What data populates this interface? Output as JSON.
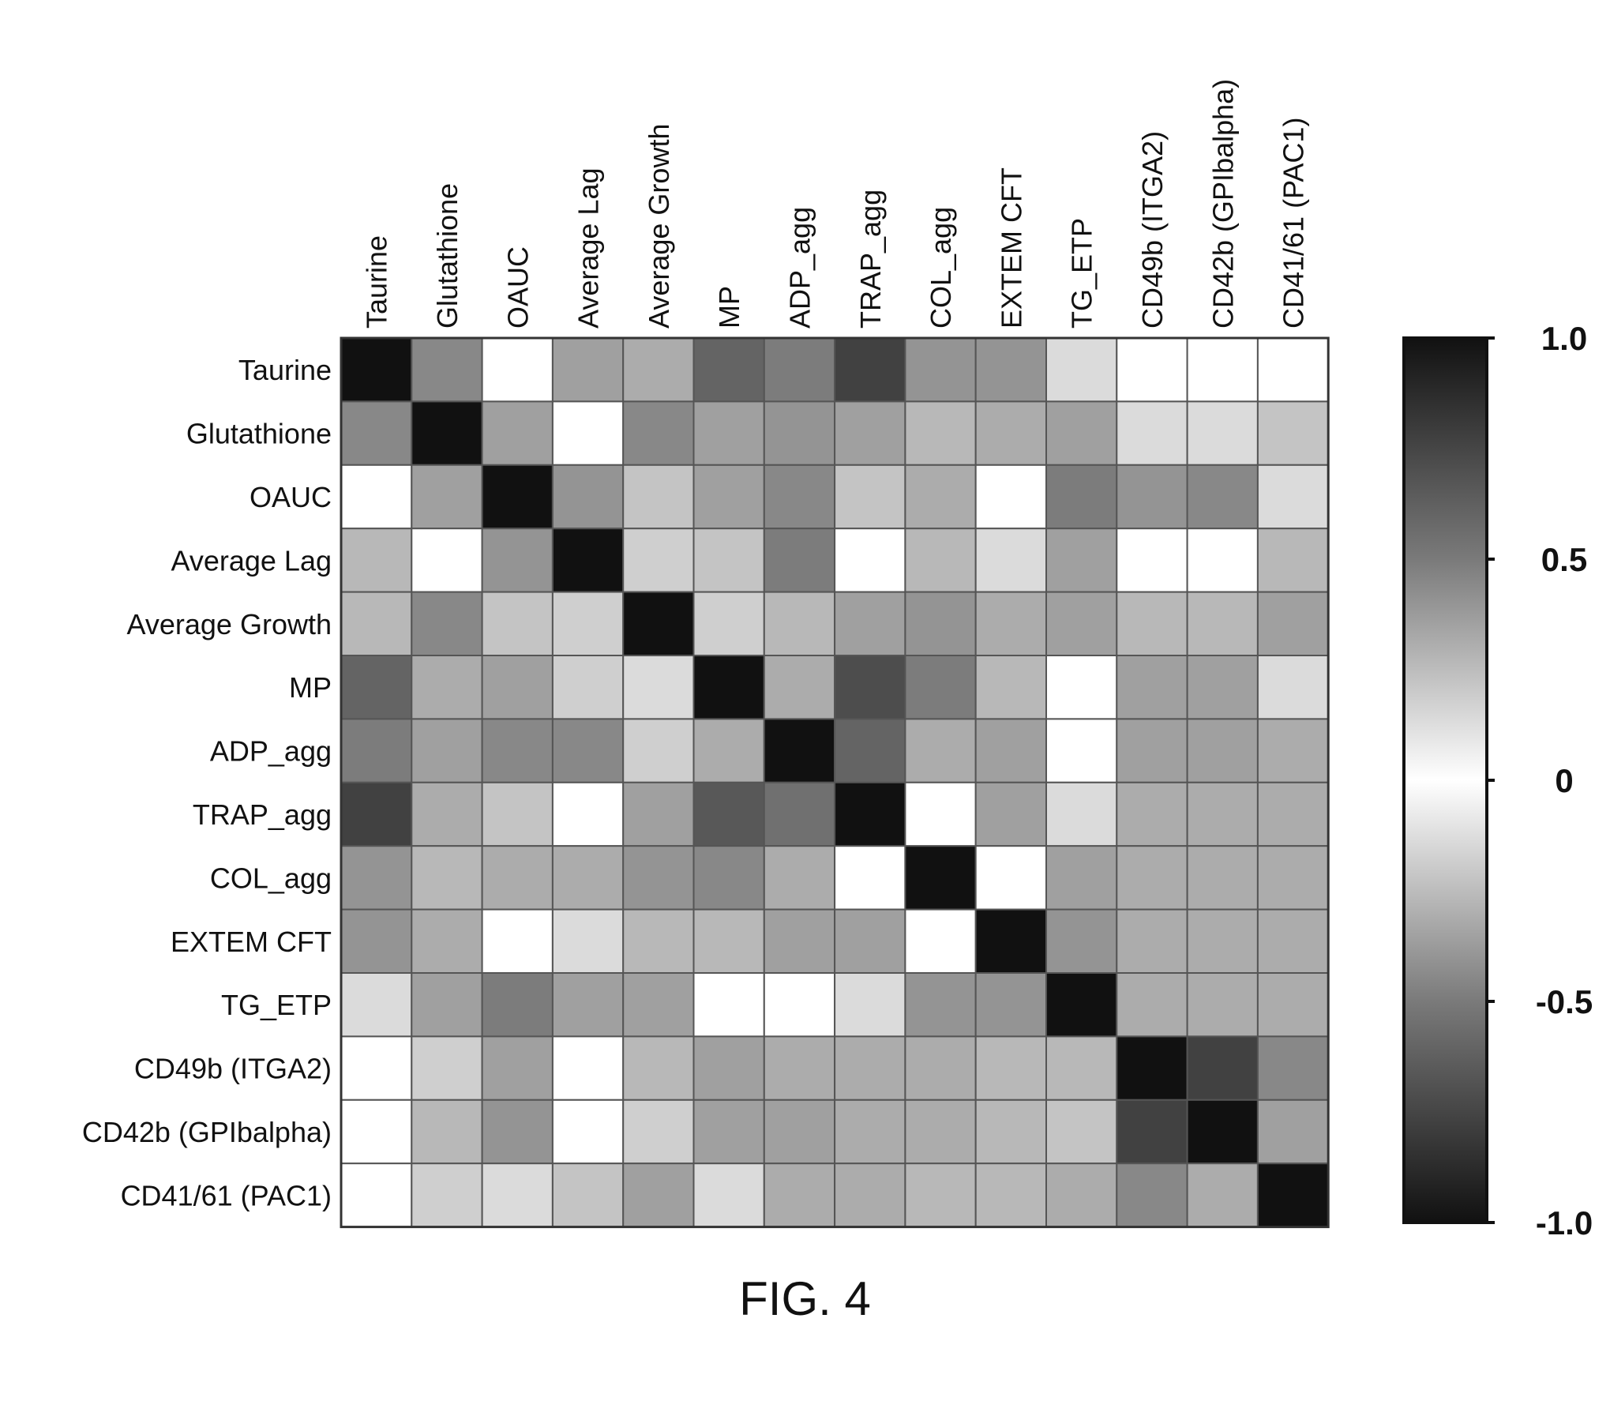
{
  "chart_data": {
    "type": "heatmap",
    "title": "",
    "xlabel": "",
    "ylabel": "",
    "labels": [
      "Taurine",
      "Glutathione",
      "OAUC",
      "Average Lag",
      "Average Growth",
      "MP",
      "ADP_agg",
      "TRAP_agg",
      "COL_agg",
      "EXTEM CFT",
      "TG_ETP",
      "CD49b (ITGA2)",
      "CD42b (GPIbalpha)",
      "CD41/61 (PAC1)"
    ],
    "matrix": [
      [
        1.0,
        0.5,
        0.0,
        0.4,
        0.35,
        0.65,
        0.55,
        0.8,
        0.45,
        0.45,
        0.15,
        0.0,
        0.0,
        0.0
      ],
      [
        0.5,
        1.0,
        0.4,
        0.0,
        0.5,
        0.4,
        0.45,
        0.4,
        0.3,
        0.35,
        0.4,
        0.15,
        0.15,
        0.25
      ],
      [
        0.0,
        0.4,
        1.0,
        0.45,
        0.25,
        0.4,
        0.5,
        0.25,
        0.35,
        0.0,
        0.55,
        0.45,
        0.5,
        0.15
      ],
      [
        0.3,
        0.0,
        0.45,
        1.0,
        0.2,
        0.25,
        0.55,
        0.0,
        0.3,
        0.15,
        0.4,
        0.0,
        0.0,
        0.3
      ],
      [
        0.3,
        0.5,
        0.25,
        0.2,
        1.0,
        0.2,
        0.3,
        0.4,
        0.45,
        0.35,
        0.4,
        0.3,
        0.3,
        0.4
      ],
      [
        0.65,
        0.35,
        0.4,
        0.2,
        0.15,
        1.0,
        0.35,
        0.75,
        0.55,
        0.3,
        0.0,
        0.4,
        0.4,
        0.15
      ],
      [
        0.55,
        0.4,
        0.5,
        0.5,
        0.2,
        0.35,
        1.0,
        0.65,
        0.35,
        0.4,
        0.0,
        0.4,
        0.4,
        0.35
      ],
      [
        0.8,
        0.35,
        0.25,
        0.0,
        0.4,
        0.7,
        0.6,
        1.0,
        0.0,
        0.4,
        0.15,
        0.35,
        0.35,
        0.35
      ],
      [
        0.45,
        0.3,
        0.35,
        0.35,
        0.45,
        0.5,
        0.35,
        0.0,
        1.0,
        0.0,
        0.4,
        0.35,
        0.35,
        0.35
      ],
      [
        0.45,
        0.35,
        0.0,
        0.15,
        0.3,
        0.3,
        0.4,
        0.4,
        0.0,
        1.0,
        0.45,
        0.35,
        0.35,
        0.35
      ],
      [
        0.15,
        0.4,
        0.55,
        0.4,
        0.4,
        0.0,
        0.0,
        0.15,
        0.45,
        0.45,
        1.0,
        0.35,
        0.35,
        0.35
      ],
      [
        0.0,
        0.2,
        0.4,
        0.0,
        0.3,
        0.4,
        0.35,
        0.35,
        0.35,
        0.3,
        0.3,
        1.0,
        0.8,
        0.5
      ],
      [
        0.0,
        0.3,
        0.45,
        0.0,
        0.2,
        0.4,
        0.4,
        0.35,
        0.35,
        0.3,
        0.25,
        0.8,
        1.0,
        0.4
      ],
      [
        0.0,
        0.2,
        0.15,
        0.25,
        0.4,
        0.15,
        0.35,
        0.35,
        0.3,
        0.3,
        0.35,
        0.5,
        0.35,
        1.0
      ]
    ],
    "colorbar": {
      "range": [
        -1.0,
        1.0
      ],
      "ticks": [
        1.0,
        0.5,
        0,
        -0.5,
        -1.0
      ],
      "tick_labels": [
        "1.0",
        "0.5",
        "0",
        "-0.5",
        "-1.0"
      ]
    },
    "grid": true,
    "legend": "colorbar-right"
  },
  "caption": "FIG. 4"
}
